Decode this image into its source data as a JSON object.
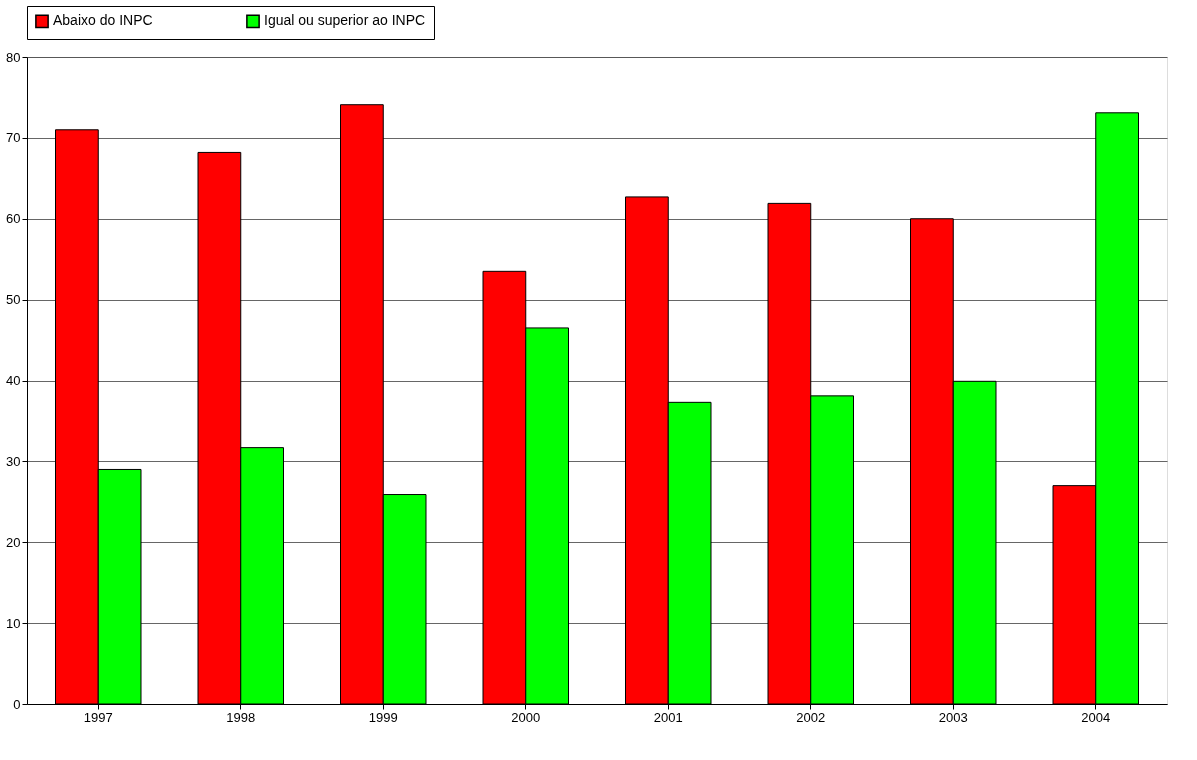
{
  "chart_data": {
    "type": "bar",
    "categories": [
      "1997",
      "1998",
      "1999",
      "2000",
      "2001",
      "2002",
      "2003",
      "2004"
    ],
    "series": [
      {
        "name": "Abaixo do INPC",
        "color": "#ff0000",
        "values": [
          71.0,
          68.2,
          74.1,
          53.5,
          62.7,
          61.9,
          60.0,
          27.0
        ]
      },
      {
        "name": "Igual ou superior ao INPC",
        "color": "#00ff00",
        "values": [
          29.0,
          31.7,
          25.9,
          46.5,
          37.3,
          38.1,
          39.9,
          73.1
        ]
      }
    ],
    "ylim": [
      0,
      80
    ],
    "yticks": [
      0,
      10,
      20,
      30,
      40,
      50,
      60,
      70,
      80
    ],
    "grid": "y",
    "legend": "top"
  }
}
